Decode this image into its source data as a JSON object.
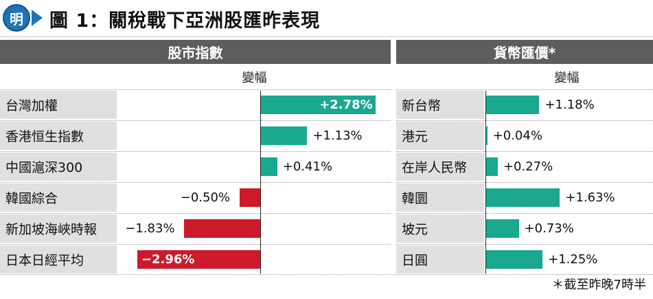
{
  "logo_glyph": "明",
  "title": "圖 1：關稅戰下亞洲股匯昨表現",
  "colors": {
    "positive": "#1aa88e",
    "negative": "#cc1a2b",
    "header_bg": "#5d5d5d",
    "label_bg": "#e0e0e0",
    "brand": "#1f73b9"
  },
  "chart_data": [
    {
      "type": "bar",
      "title": "股市指數",
      "ylabel": "變幅",
      "categories": [
        "台灣加權",
        "香港恒生指數",
        "中國滬深300",
        "韓國綜合",
        "新加坡海峽時報",
        "日本日經平均"
      ],
      "values": [
        2.78,
        1.13,
        0.41,
        -0.5,
        -1.83,
        -2.96
      ],
      "labels": [
        "+2.78%",
        "+1.13%",
        "+0.41%",
        "−0.50%",
        "−1.83%",
        "−2.96%"
      ],
      "xlim": [
        -3.0,
        3.0
      ]
    },
    {
      "type": "bar",
      "title": "貨幣匯價*",
      "ylabel": "變幅",
      "categories": [
        "新台幣",
        "港元",
        "在岸人民幣",
        "韓圜",
        "坡元",
        "日圓"
      ],
      "values": [
        1.18,
        0.04,
        0.27,
        1.63,
        0.73,
        1.25
      ],
      "labels": [
        "+1.18%",
        "+0.04%",
        "+0.27%",
        "+1.63%",
        "+0.73%",
        "+1.25%"
      ],
      "xlim": [
        0,
        2.1
      ]
    }
  ],
  "footnote": "＊截至昨晚7時半"
}
